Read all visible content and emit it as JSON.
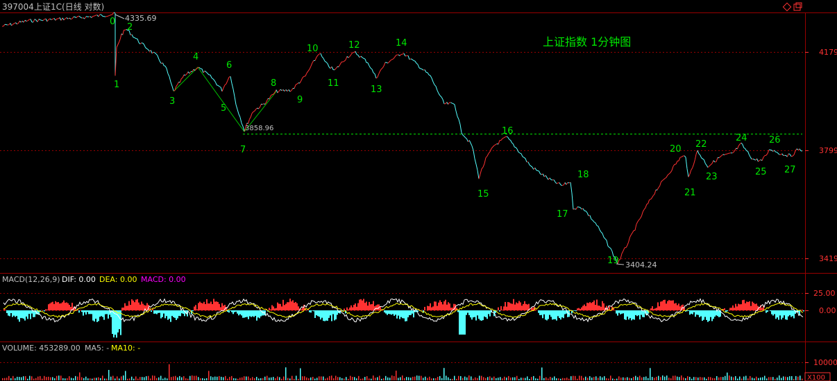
{
  "header": {
    "code": "397004",
    "name": "上证1C(日线 对数)"
  },
  "main": {
    "caption": "上证指数 1分钟图",
    "high_label": "4335.69",
    "low_label": "3404.24",
    "support_label": "3858.96",
    "price_ticks": [
      "4179",
      "3799",
      "3419"
    ]
  },
  "macd": {
    "label": "MACD(12,26,9)",
    "dif": "DIF: 0.00",
    "dea": "DEA: 0.00",
    "macd": "MACD: 0.00",
    "ticks": [
      "25.00",
      "0.00"
    ]
  },
  "volume": {
    "label": "VOLUME: 453289.00",
    "ma5": "MA5: -",
    "ma10": "MA10: -",
    "tick": "10000",
    "unit": "X100"
  },
  "colors": {
    "up": "#ff3232",
    "down": "#54ffff",
    "wave_label": "#00e600",
    "grid": "#990000",
    "axis_text": "#ff3232",
    "dea_line": "#ffff00",
    "dif_line": "#ffffff",
    "macd_text": "#ff00ff"
  },
  "chart_data": {
    "type": "line",
    "title": "上证指数 1分钟图",
    "y_scale": "log",
    "ylim": [
      3380,
      4360
    ],
    "annotations": [
      {
        "label": "0",
        "price": 4335.69
      },
      {
        "label": "1",
        "price": 4120
      },
      {
        "label": "2",
        "price": 4300
      },
      {
        "label": "3",
        "price": 4000
      },
      {
        "label": "4",
        "price": 4110
      },
      {
        "label": "5",
        "price": 4005
      },
      {
        "label": "6",
        "price": 4080
      },
      {
        "label": "7",
        "price": 3858.96
      },
      {
        "label": "8",
        "price": 4000
      },
      {
        "label": "9",
        "price": 4030
      },
      {
        "label": "10",
        "price": 4195
      },
      {
        "label": "11",
        "price": 4130
      },
      {
        "label": "12",
        "price": 4190
      },
      {
        "label": "13",
        "price": 4115
      },
      {
        "label": "14",
        "price": 4195
      },
      {
        "label": "15",
        "price": 3710
      },
      {
        "label": "16",
        "price": 3840
      },
      {
        "label": "17",
        "price": 3610
      },
      {
        "label": "18",
        "price": 3700
      },
      {
        "label": "19",
        "price": 3404.24
      },
      {
        "label": "20",
        "price": 3810
      },
      {
        "label": "21",
        "price": 3700
      },
      {
        "label": "22",
        "price": 3815
      },
      {
        "label": "23",
        "price": 3770
      },
      {
        "label": "24",
        "price": 3820
      },
      {
        "label": "25",
        "price": 3775
      },
      {
        "label": "26",
        "price": 3815
      },
      {
        "label": "27",
        "price": 3790
      }
    ]
  }
}
